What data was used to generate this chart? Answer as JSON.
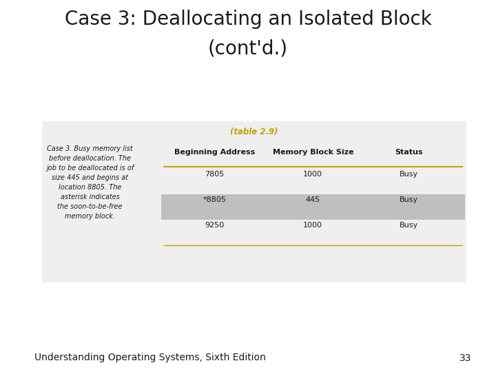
{
  "title_line1": "Case 3: Deallocating an Isolated Block",
  "title_line2": "(cont'd.)",
  "title_fontsize": 20,
  "title_color": "#1a1a1a",
  "table_caption": "(table 2.9)",
  "table_caption_color": "#c8a000",
  "side_text": "Case 3. Busy memory list\nbefore deallocation. The\njob to be deallocated is of\nsize 445 and begins at\nlocation 8805. The\nasterisk indicates\nthe soon-to-be-free\nmemory block.",
  "col_headers": [
    "Beginning Address",
    "Memory Block Size",
    "Status"
  ],
  "rows": [
    [
      "7805",
      "1000",
      "Busy"
    ],
    [
      "*8805",
      "445",
      "Busy"
    ],
    [
      "9250",
      "1000",
      "Busy"
    ]
  ],
  "highlight_row": 1,
  "highlight_color": "#c0bfbf",
  "header_line_color": "#c8a000",
  "table_bg": "#efefef",
  "footer_text": "Understanding Operating Systems, Sixth Edition",
  "footer_page": "33",
  "footer_fontsize": 10,
  "background_color": "#ffffff",
  "col_header_fontsize": 8,
  "row_fontsize": 8,
  "side_text_fontsize": 7
}
